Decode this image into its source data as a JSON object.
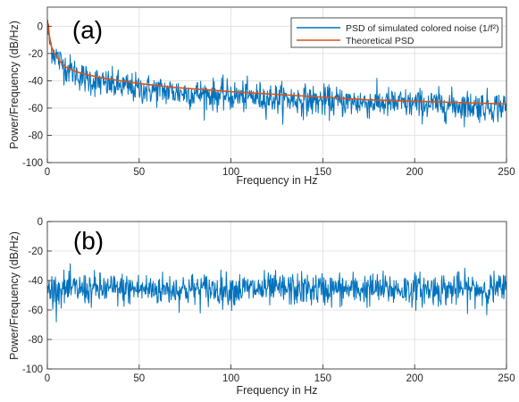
{
  "chart_data": [
    {
      "type": "line",
      "panel_label": "(a)",
      "xlabel": "Frequency in Hz",
      "ylabel": "Power/Frequency (dB/Hz)",
      "xlim": [
        0,
        250
      ],
      "ylim": [
        -100,
        14
      ],
      "xticks": [
        0,
        50,
        100,
        150,
        200,
        250
      ],
      "yticks": [
        -100,
        -80,
        -60,
        -40,
        -20,
        0
      ],
      "xtick_labels": [
        "0",
        "50",
        "100",
        "150",
        "200",
        "250"
      ],
      "ytick_labels": [
        "-100",
        "-80",
        "-60",
        "-40",
        "-20",
        "0"
      ],
      "grid": true,
      "legend_position": "top-right",
      "series": [
        {
          "name": "PSD of simulated colored noise  (1/f²)",
          "color": "#0072BD",
          "kind": "noisy_psd",
          "x": [
            0,
            0.5,
            1,
            2,
            3,
            5,
            7,
            10,
            15,
            20,
            30,
            40,
            50,
            60,
            75,
            100,
            125,
            150,
            175,
            200,
            225,
            250
          ],
          "y": [
            2,
            -4,
            -10,
            -14,
            -18,
            -22,
            -26,
            -30,
            -34,
            -38,
            -42,
            -44,
            -46,
            -47,
            -49,
            -51,
            -53,
            -55,
            -56,
            -57,
            -58,
            -59
          ]
        },
        {
          "name": "Theoretical PSD",
          "color": "#D95319",
          "kind": "theoretical",
          "x": [
            0.5,
            1,
            2,
            3,
            5,
            7,
            10,
            15,
            20,
            30,
            40,
            50,
            70,
            100,
            125,
            150,
            175,
            200,
            225,
            250
          ],
          "y": [
            2,
            -6,
            -14,
            -18,
            -22,
            -26,
            -30,
            -33,
            -35,
            -38,
            -40,
            -42,
            -45,
            -48,
            -50,
            -52,
            -54,
            -55,
            -56,
            -57
          ]
        }
      ]
    },
    {
      "type": "line",
      "panel_label": "(b)",
      "xlabel": "Frequency in Hz",
      "ylabel": "Power/Frequency (dB/Hz)",
      "xlim": [
        0,
        250
      ],
      "ylim": [
        -100,
        0
      ],
      "xticks": [
        0,
        50,
        100,
        150,
        200,
        250
      ],
      "yticks": [
        -100,
        -80,
        -60,
        -40,
        -20,
        0
      ],
      "xtick_labels": [
        "0",
        "50",
        "100",
        "150",
        "200",
        "250"
      ],
      "ytick_labels": [
        "-100",
        "-80",
        "-60",
        "-40",
        "-20",
        "0"
      ],
      "grid": true,
      "series": [
        {
          "color": "#0072BD",
          "kind": "noisy_flat",
          "x": [
            0,
            250
          ],
          "y": [
            -46,
            -46
          ]
        }
      ]
    }
  ]
}
